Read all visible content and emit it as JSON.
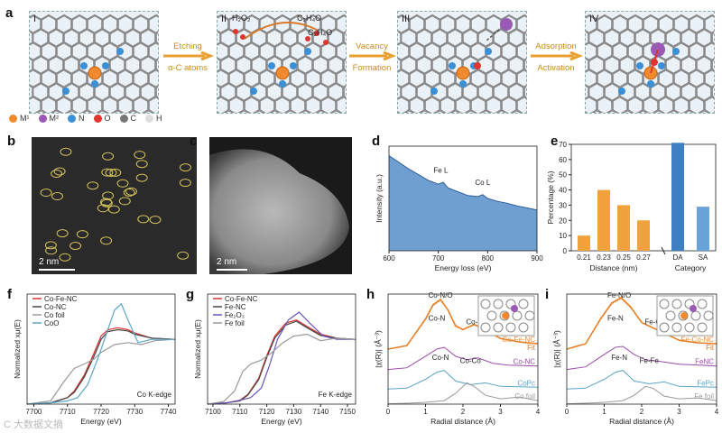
{
  "panel_letters": {
    "a": "a",
    "b": "b",
    "c": "c",
    "d": "d",
    "e": "e",
    "f": "f",
    "g": "g",
    "h": "h",
    "i": "i"
  },
  "schematic": {
    "stages": [
      "I",
      "II",
      "III",
      "IV"
    ],
    "steps": [
      {
        "line1": "Etching",
        "line2": "α-C atoms"
      },
      {
        "line1": "Vacancy",
        "line2": "Formation"
      },
      {
        "line1": "Adsorption",
        "line2": "Activation"
      }
    ],
    "molecules": {
      "h2o2": "H₂O₂",
      "c2h4o": "C₂H₄O",
      "c2h4o2": "C₂H₄O"
    },
    "legend": [
      {
        "label": "M¹",
        "color": "#f08a2c"
      },
      {
        "label": "M²",
        "color": "#9b59b6"
      },
      {
        "label": "N",
        "color": "#3a8fd9"
      },
      {
        "label": "O",
        "color": "#e0342c"
      },
      {
        "label": "C",
        "color": "#777777"
      },
      {
        "label": "H",
        "color": "#dddddd"
      }
    ]
  },
  "images": {
    "b_scale": "2 nm",
    "c_scale": "2 nm"
  },
  "chart_data": [
    {
      "panel": "d",
      "type": "area",
      "xlabel": "Energy loss (eV)",
      "ylabel": "Intensity (a.u.)",
      "xlim": [
        600,
        900
      ],
      "xticks": [
        "600",
        "700",
        "800",
        "900"
      ],
      "x": [
        600,
        620,
        640,
        660,
        680,
        700,
        710,
        720,
        740,
        760,
        780,
        790,
        800,
        820,
        840,
        860,
        880,
        900
      ],
      "values": [
        1.0,
        0.93,
        0.86,
        0.8,
        0.74,
        0.7,
        0.72,
        0.66,
        0.62,
        0.58,
        0.57,
        0.59,
        0.55,
        0.52,
        0.5,
        0.47,
        0.45,
        0.43
      ],
      "annotations": [
        "Fe L",
        "Co L"
      ]
    },
    {
      "panel": "e",
      "type": "bar",
      "left": {
        "xlabel": "Distance (nm)",
        "categories": [
          "0.21",
          "0.23",
          "0.25",
          "0.27"
        ],
        "values": [
          10,
          40,
          30,
          20
        ]
      },
      "right": {
        "xlabel": "Category",
        "categories": [
          "DA",
          "SA"
        ],
        "values": [
          71,
          29
        ]
      },
      "ylabel": "Percentage (%)",
      "ylim": [
        0,
        70
      ],
      "yticks": [
        "0",
        "10",
        "20",
        "30",
        "40",
        "50",
        "60",
        "70"
      ]
    },
    {
      "panel": "f",
      "type": "line",
      "xlabel": "Energy (eV)",
      "ylabel": "Normalized xμ(E)",
      "xlim": [
        7698,
        7742
      ],
      "xticks": [
        "7700",
        "7710",
        "7720",
        "7730",
        "7740"
      ],
      "note": "Co K-edge",
      "series": [
        {
          "name": "Co-Fe-NC",
          "color": "#d93030",
          "x": [
            7698,
            7705,
            7710,
            7712,
            7715,
            7718,
            7720,
            7722,
            7725,
            7728,
            7730,
            7735,
            7742
          ],
          "values": [
            0.0,
            0.02,
            0.1,
            0.2,
            0.45,
            0.8,
            1.05,
            1.15,
            1.18,
            1.15,
            1.1,
            1.02,
            1.0
          ]
        },
        {
          "name": "Co-NC",
          "color": "#444444",
          "x": [
            7698,
            7705,
            7710,
            7712,
            7715,
            7718,
            7720,
            7722,
            7725,
            7728,
            7730,
            7735,
            7742
          ],
          "values": [
            0.0,
            0.02,
            0.1,
            0.18,
            0.42,
            0.75,
            1.0,
            1.12,
            1.15,
            1.13,
            1.08,
            1.02,
            1.0
          ]
        },
        {
          "name": "Co foil",
          "color": "#9a9a9a",
          "x": [
            7698,
            7705,
            7709,
            7712,
            7715,
            7718,
            7720,
            7724,
            7728,
            7732,
            7736,
            7742
          ],
          "values": [
            0.0,
            0.05,
            0.35,
            0.55,
            0.62,
            0.7,
            0.8,
            0.92,
            0.95,
            0.92,
            0.98,
            1.0
          ]
        },
        {
          "name": "CoO",
          "color": "#5aa5c8",
          "x": [
            7698,
            7705,
            7710,
            7713,
            7716,
            7719,
            7722,
            7724,
            7726,
            7728,
            7731,
            7735,
            7742
          ],
          "values": [
            0.0,
            0.02,
            0.05,
            0.1,
            0.3,
            0.7,
            1.15,
            1.45,
            1.55,
            1.3,
            0.95,
            1.0,
            1.0
          ]
        }
      ]
    },
    {
      "panel": "g",
      "type": "line",
      "xlabel": "Energy (eV)",
      "ylabel": "Normalized xμ(E)",
      "xlim": [
        7098,
        7153
      ],
      "xticks": [
        "7100",
        "7110",
        "7120",
        "7130",
        "7140",
        "7150"
      ],
      "note": "Fe K-edge",
      "series": [
        {
          "name": "Co-Fe-NC",
          "color": "#d93030",
          "x": [
            7098,
            7105,
            7110,
            7113,
            7117,
            7120,
            7123,
            7127,
            7131,
            7135,
            7140,
            7146,
            7153
          ],
          "values": [
            0.0,
            0.02,
            0.06,
            0.15,
            0.4,
            0.75,
            1.05,
            1.25,
            1.3,
            1.2,
            1.08,
            1.02,
            1.0
          ]
        },
        {
          "name": "Fe-NC",
          "color": "#444444",
          "x": [
            7098,
            7105,
            7110,
            7113,
            7117,
            7120,
            7123,
            7127,
            7131,
            7135,
            7140,
            7146,
            7153
          ],
          "values": [
            0.0,
            0.02,
            0.05,
            0.14,
            0.38,
            0.72,
            1.02,
            1.22,
            1.28,
            1.18,
            1.06,
            1.02,
            1.0
          ]
        },
        {
          "name": "Fe₂O₃",
          "color": "#6a55b8",
          "x": [
            7098,
            7105,
            7110,
            7114,
            7118,
            7121,
            7124,
            7128,
            7132,
            7136,
            7141,
            7146,
            7153
          ],
          "values": [
            0.0,
            0.02,
            0.06,
            0.1,
            0.25,
            0.6,
            1.0,
            1.3,
            1.42,
            1.25,
            1.05,
            1.0,
            1.0
          ]
        },
        {
          "name": "Fe foil",
          "color": "#9a9a9a",
          "x": [
            7098,
            7104,
            7108,
            7111,
            7114,
            7118,
            7122,
            7126,
            7130,
            7135,
            7140,
            7146,
            7153
          ],
          "values": [
            0.0,
            0.04,
            0.2,
            0.5,
            0.62,
            0.68,
            0.8,
            0.95,
            1.05,
            1.08,
            0.98,
            1.02,
            1.0
          ]
        }
      ]
    },
    {
      "panel": "h",
      "type": "line",
      "xlabel": "Radial distance (Å)",
      "ylabel": "|χ(R)| (Å⁻³)",
      "xlim": [
        0,
        4
      ],
      "xticks": [
        "0",
        "1",
        "2",
        "3",
        "4"
      ],
      "peak_labels": [
        "Co-N/O",
        "Co-N",
        "Co-Fe",
        "Co-N",
        "Co-Co"
      ],
      "series": [
        {
          "name": "Co-Fe-NC",
          "color": "#f08a2c",
          "offset": 3,
          "x": [
            0,
            0.5,
            1.0,
            1.2,
            1.4,
            1.6,
            1.8,
            2.0,
            2.3,
            2.5,
            3.0,
            3.5,
            4.0
          ],
          "values": [
            0.1,
            0.3,
            1.8,
            2.6,
            2.9,
            2.3,
            1.4,
            1.2,
            1.5,
            1.3,
            0.7,
            0.5,
            0.4
          ]
        },
        {
          "name": "Fit",
          "color": "#d97a2a",
          "offset": 3,
          "x": [
            0,
            0.5,
            1.0,
            1.2,
            1.4,
            1.6,
            1.8,
            2.0,
            2.3,
            2.5,
            3.0,
            3.5,
            4.0
          ],
          "values": [
            0.1,
            0.3,
            1.75,
            2.55,
            2.85,
            2.3,
            1.45,
            1.2,
            1.45,
            1.25,
            0.7,
            0.5,
            0.4
          ]
        },
        {
          "name": "Co-NC",
          "color": "#9a4aaa",
          "offset": 1.9,
          "x": [
            0,
            0.5,
            1.0,
            1.3,
            1.5,
            1.8,
            2.1,
            2.4,
            2.8,
            3.2,
            4.0
          ],
          "values": [
            0.05,
            0.15,
            0.8,
            1.2,
            1.3,
            0.8,
            0.6,
            0.7,
            0.4,
            0.3,
            0.25
          ]
        },
        {
          "name": "CoPc",
          "color": "#5aa5c8",
          "offset": 0.8,
          "x": [
            0,
            0.5,
            1.0,
            1.3,
            1.5,
            1.8,
            2.2,
            2.6,
            3.0,
            4.0
          ],
          "values": [
            0.05,
            0.1,
            0.6,
            1.0,
            1.1,
            0.5,
            0.3,
            0.4,
            0.2,
            0.15
          ]
        },
        {
          "name": "Co foil",
          "color": "#9a9a9a",
          "offset": 0,
          "x": [
            0,
            0.5,
            1.0,
            1.5,
            1.8,
            2.1,
            2.3,
            2.6,
            3.0,
            3.5,
            4.0
          ],
          "values": [
            0.02,
            0.05,
            0.1,
            0.2,
            0.6,
            1.2,
            1.0,
            0.5,
            0.3,
            0.4,
            0.2
          ]
        }
      ]
    },
    {
      "panel": "i",
      "type": "line",
      "xlabel": "Radial distance (Å)",
      "ylabel": "|χ(R)| (Å⁻³)",
      "xlim": [
        0,
        4
      ],
      "xticks": [
        "0",
        "1",
        "2",
        "3",
        "4"
      ],
      "peak_labels": [
        "Fe-N/O",
        "Fe-N",
        "Fe-Co",
        "Fe-N",
        "Fe-Fe"
      ],
      "series": [
        {
          "name": "Fe-Co-NC",
          "color": "#f08a2c",
          "offset": 3,
          "x": [
            0,
            0.5,
            0.9,
            1.2,
            1.45,
            1.7,
            2.0,
            2.3,
            2.6,
            3.0,
            3.5,
            4.0
          ],
          "values": [
            0.1,
            0.4,
            1.8,
            2.7,
            3.0,
            2.5,
            1.6,
            1.3,
            1.0,
            0.6,
            0.45,
            0.4
          ]
        },
        {
          "name": "Fit",
          "color": "#d97a2a",
          "offset": 3,
          "x": [
            0,
            0.5,
            0.9,
            1.2,
            1.45,
            1.7,
            2.0,
            2.3,
            2.6,
            3.0,
            3.5,
            4.0
          ],
          "values": [
            0.1,
            0.4,
            1.75,
            2.65,
            2.95,
            2.45,
            1.6,
            1.3,
            1.0,
            0.6,
            0.45,
            0.4
          ]
        },
        {
          "name": "FeNC",
          "color": "#9a4aaa",
          "offset": 1.9,
          "x": [
            0,
            0.5,
            1.0,
            1.3,
            1.5,
            1.8,
            2.1,
            2.5,
            3.0,
            4.0
          ],
          "values": [
            0.05,
            0.2,
            0.9,
            1.3,
            1.35,
            0.9,
            0.6,
            0.5,
            0.35,
            0.25
          ]
        },
        {
          "name": "FePc",
          "color": "#5aa5c8",
          "offset": 0.8,
          "x": [
            0,
            0.5,
            1.0,
            1.3,
            1.5,
            1.8,
            2.2,
            2.6,
            3.0,
            4.0
          ],
          "values": [
            0.05,
            0.1,
            0.6,
            1.0,
            1.1,
            0.5,
            0.35,
            0.45,
            0.2,
            0.15
          ]
        },
        {
          "name": "Fe foil",
          "color": "#9a9a9a",
          "offset": 0,
          "x": [
            0,
            0.5,
            1.0,
            1.5,
            1.8,
            2.1,
            2.3,
            2.6,
            3.0,
            3.5,
            4.0
          ],
          "values": [
            0.02,
            0.05,
            0.1,
            0.2,
            0.5,
            1.0,
            0.9,
            0.45,
            0.3,
            0.35,
            0.2
          ]
        }
      ]
    }
  ],
  "watermark": "C  大数据文摘"
}
